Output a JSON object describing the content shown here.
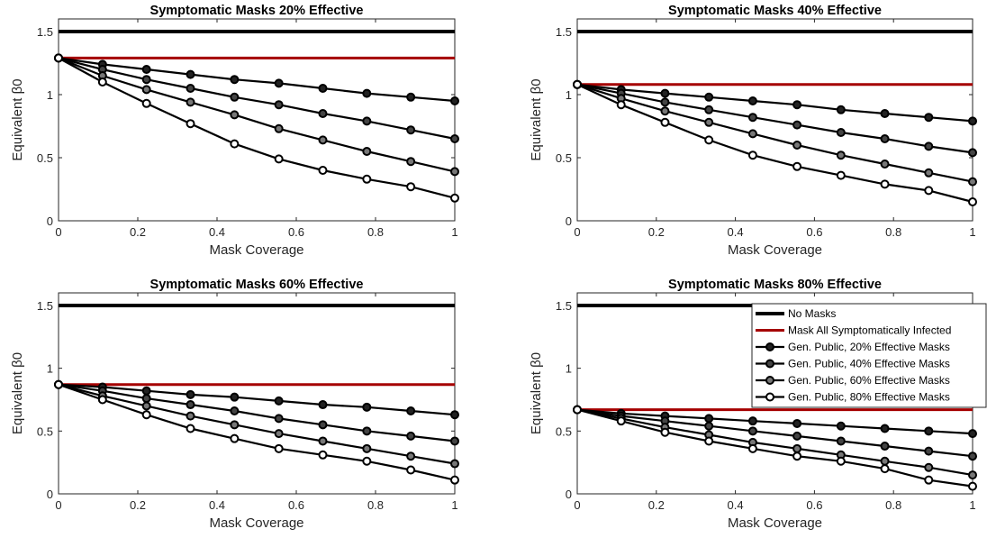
{
  "colors": {
    "no_masks": "#000000",
    "mask_symptomatic": "#a50000",
    "gen_public_line": "#000000"
  },
  "legend": {
    "entries": [
      "No Masks",
      "Mask All Symptomatically Infected",
      "Gen. Public, 20% Effective Masks",
      "Gen. Public, 40% Effective Masks",
      "Gen. Public, 60% Effective Masks",
      "Gen. Public, 80% Effective Masks"
    ],
    "marker_fills": [
      "#222222",
      "#444444",
      "#777777",
      "#ffffff"
    ]
  },
  "chart_data": [
    {
      "type": "line",
      "title": "Symptomatic Masks 20% Effective",
      "xlabel": "Mask Coverage",
      "ylabel": "Equivalent β0",
      "xlim": [
        0,
        1
      ],
      "ylim": [
        0,
        1.6
      ],
      "xticks": [
        "0",
        "0.2",
        "0.4",
        "0.6",
        "0.8",
        "1"
      ],
      "yticks": [
        "0",
        "0.5",
        "1",
        "1.5"
      ],
      "no_masks": 1.5,
      "mask_symptomatic": 1.29,
      "x": [
        0,
        0.111,
        0.222,
        0.333,
        0.444,
        0.556,
        0.667,
        0.778,
        0.889,
        1
      ],
      "series": [
        {
          "name": "Gen. Public, 20% Effective Masks",
          "values": [
            1.29,
            1.24,
            1.2,
            1.16,
            1.12,
            1.09,
            1.05,
            1.01,
            0.98,
            0.95
          ]
        },
        {
          "name": "Gen. Public, 40% Effective Masks",
          "values": [
            1.29,
            1.2,
            1.12,
            1.05,
            0.98,
            0.92,
            0.85,
            0.79,
            0.72,
            0.65
          ]
        },
        {
          "name": "Gen. Public, 60% Effective Masks",
          "values": [
            1.29,
            1.15,
            1.04,
            0.94,
            0.84,
            0.73,
            0.64,
            0.55,
            0.47,
            0.39
          ]
        },
        {
          "name": "Gen. Public, 80% Effective Masks",
          "values": [
            1.29,
            1.1,
            0.93,
            0.77,
            0.61,
            0.49,
            0.4,
            0.33,
            0.27,
            0.18
          ]
        }
      ]
    },
    {
      "type": "line",
      "title": "Symptomatic Masks 40% Effective",
      "xlabel": "Mask Coverage",
      "ylabel": "Equivalent β0",
      "xlim": [
        0,
        1
      ],
      "ylim": [
        0,
        1.6
      ],
      "xticks": [
        "0",
        "0.2",
        "0.4",
        "0.6",
        "0.8",
        "1"
      ],
      "yticks": [
        "0",
        "0.5",
        "1",
        "1.5"
      ],
      "no_masks": 1.5,
      "mask_symptomatic": 1.08,
      "x": [
        0,
        0.111,
        0.222,
        0.333,
        0.444,
        0.556,
        0.667,
        0.778,
        0.889,
        1
      ],
      "series": [
        {
          "name": "Gen. Public, 20% Effective Masks",
          "values": [
            1.08,
            1.04,
            1.01,
            0.98,
            0.95,
            0.92,
            0.88,
            0.85,
            0.82,
            0.79
          ]
        },
        {
          "name": "Gen. Public, 40% Effective Masks",
          "values": [
            1.08,
            1.01,
            0.94,
            0.88,
            0.82,
            0.76,
            0.7,
            0.65,
            0.59,
            0.54
          ]
        },
        {
          "name": "Gen. Public, 60% Effective Masks",
          "values": [
            1.08,
            0.97,
            0.87,
            0.78,
            0.69,
            0.6,
            0.52,
            0.45,
            0.38,
            0.31
          ]
        },
        {
          "name": "Gen. Public, 80% Effective Masks",
          "values": [
            1.08,
            0.92,
            0.78,
            0.64,
            0.52,
            0.43,
            0.36,
            0.29,
            0.24,
            0.15
          ]
        }
      ]
    },
    {
      "type": "line",
      "title": "Symptomatic Masks 60% Effective",
      "xlabel": "Mask Coverage",
      "ylabel": "Equivalent β0",
      "xlim": [
        0,
        1
      ],
      "ylim": [
        0,
        1.6
      ],
      "xticks": [
        "0",
        "0.2",
        "0.4",
        "0.6",
        "0.8",
        "1"
      ],
      "yticks": [
        "0",
        "0.5",
        "1",
        "1.5"
      ],
      "no_masks": 1.5,
      "mask_symptomatic": 0.87,
      "x": [
        0,
        0.111,
        0.222,
        0.333,
        0.444,
        0.556,
        0.667,
        0.778,
        0.889,
        1
      ],
      "series": [
        {
          "name": "Gen. Public, 20% Effective Masks",
          "values": [
            0.87,
            0.85,
            0.82,
            0.79,
            0.77,
            0.74,
            0.71,
            0.69,
            0.66,
            0.63
          ]
        },
        {
          "name": "Gen. Public, 40% Effective Masks",
          "values": [
            0.87,
            0.82,
            0.76,
            0.71,
            0.66,
            0.6,
            0.55,
            0.5,
            0.46,
            0.42
          ]
        },
        {
          "name": "Gen. Public, 60% Effective Masks",
          "values": [
            0.87,
            0.78,
            0.7,
            0.62,
            0.55,
            0.48,
            0.42,
            0.36,
            0.3,
            0.24
          ]
        },
        {
          "name": "Gen. Public, 80% Effective Masks",
          "values": [
            0.87,
            0.75,
            0.63,
            0.52,
            0.44,
            0.36,
            0.31,
            0.26,
            0.19,
            0.11
          ]
        }
      ]
    },
    {
      "type": "line",
      "title": "Symptomatic Masks 80% Effective",
      "xlabel": "Mask Coverage",
      "ylabel": "Equivalent β0",
      "xlim": [
        0,
        1
      ],
      "ylim": [
        0,
        1.6
      ],
      "xticks": [
        "0",
        "0.2",
        "0.4",
        "0.6",
        "0.8",
        "1"
      ],
      "yticks": [
        "0",
        "0.5",
        "1",
        "1.5"
      ],
      "no_masks": 1.5,
      "mask_symptomatic": 0.67,
      "x": [
        0,
        0.111,
        0.222,
        0.333,
        0.444,
        0.556,
        0.667,
        0.778,
        0.889,
        1
      ],
      "series": [
        {
          "name": "Gen. Public, 20% Effective Masks",
          "values": [
            0.67,
            0.64,
            0.62,
            0.6,
            0.58,
            0.56,
            0.54,
            0.52,
            0.5,
            0.48
          ]
        },
        {
          "name": "Gen. Public, 40% Effective Masks",
          "values": [
            0.67,
            0.62,
            0.58,
            0.54,
            0.5,
            0.46,
            0.42,
            0.38,
            0.34,
            0.3
          ]
        },
        {
          "name": "Gen. Public, 60% Effective Masks",
          "values": [
            0.67,
            0.6,
            0.53,
            0.47,
            0.41,
            0.36,
            0.31,
            0.26,
            0.21,
            0.15
          ]
        },
        {
          "name": "Gen. Public, 80% Effective Masks",
          "values": [
            0.67,
            0.58,
            0.49,
            0.42,
            0.36,
            0.3,
            0.26,
            0.2,
            0.11,
            0.06
          ]
        }
      ]
    }
  ]
}
